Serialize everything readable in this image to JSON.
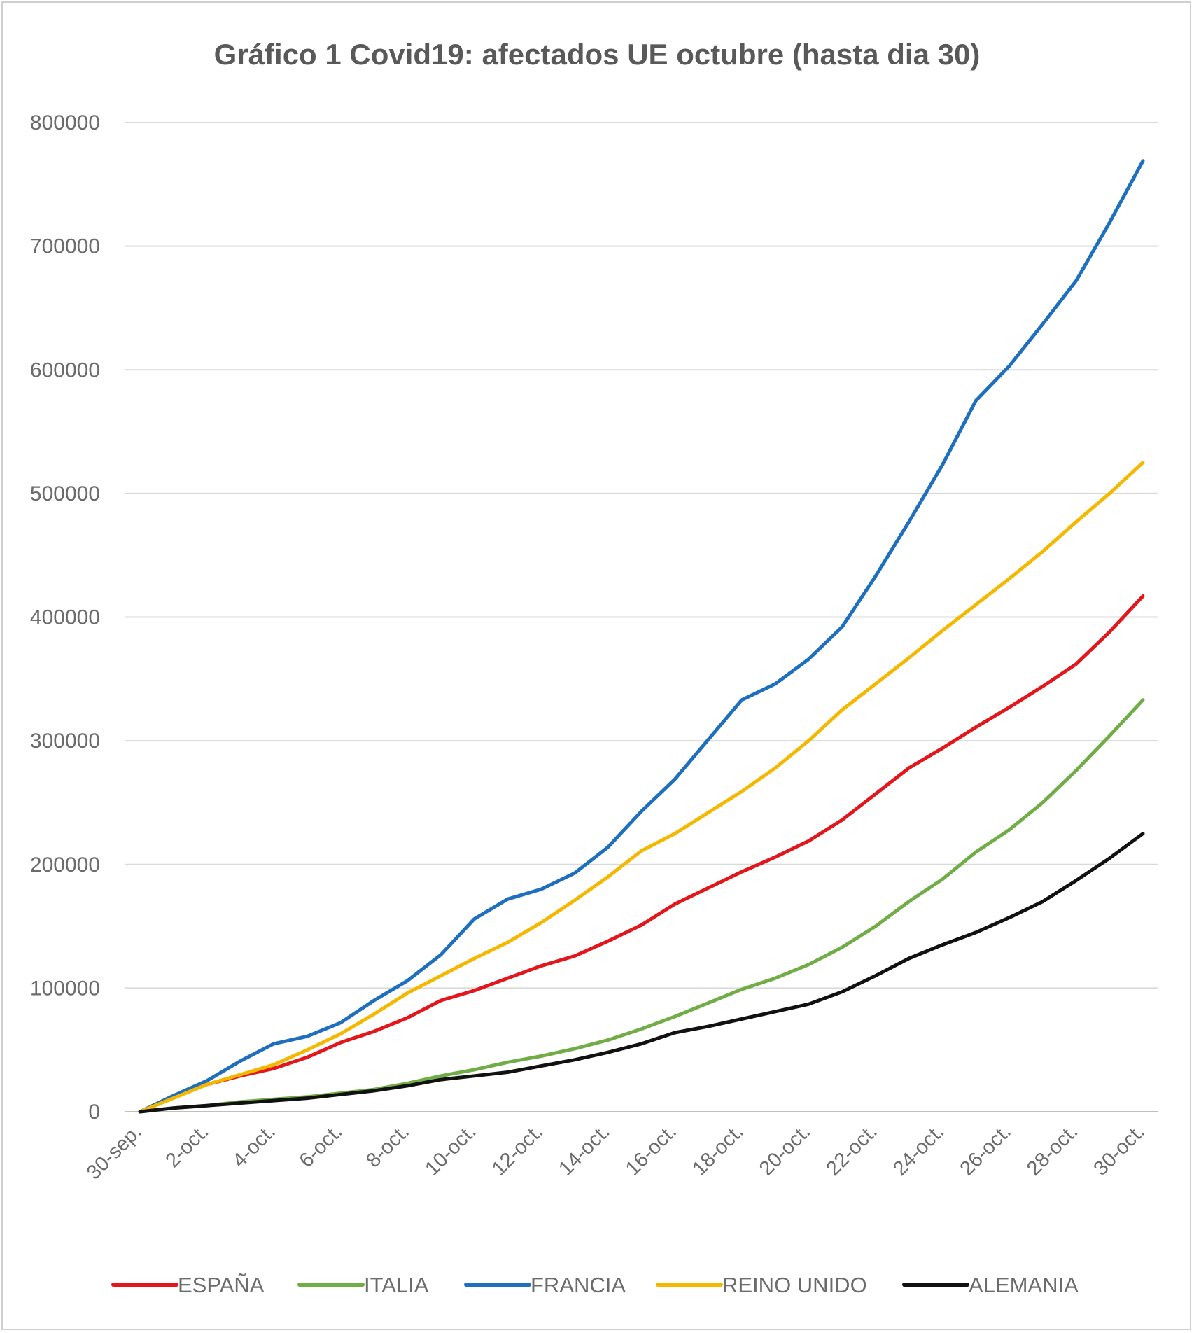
{
  "chart_data": {
    "type": "line",
    "title": "Gráfico 1  Covid19: afectados UE octubre (hasta dia 30)",
    "xlabel": "",
    "ylabel": "",
    "ylim": [
      0,
      800000
    ],
    "y_ticks": [
      "0",
      "100000",
      "200000",
      "300000",
      "400000",
      "500000",
      "600000",
      "700000",
      "800000"
    ],
    "y_tick_values": [
      0,
      100000,
      200000,
      300000,
      400000,
      500000,
      600000,
      700000,
      800000
    ],
    "x": [
      "30-sep.",
      "1-oct.",
      "2-oct.",
      "3-oct.",
      "4-oct.",
      "5-oct.",
      "6-oct.",
      "7-oct.",
      "8-oct.",
      "9-oct.",
      "10-oct.",
      "11-oct.",
      "12-oct.",
      "13-oct.",
      "14-oct.",
      "15-oct.",
      "16-oct.",
      "17-oct.",
      "18-oct.",
      "19-oct.",
      "20-oct.",
      "21-oct.",
      "22-oct.",
      "23-oct.",
      "24-oct.",
      "25-oct.",
      "26-oct.",
      "27-oct.",
      "28-oct.",
      "29-oct.",
      "30-oct."
    ],
    "x_tick_labels": [
      "30-sep.",
      "2-oct.",
      "4-oct.",
      "6-oct.",
      "8-oct.",
      "10-oct.",
      "12-oct.",
      "14-oct.",
      "16-oct.",
      "18-oct.",
      "20-oct.",
      "22-oct.",
      "24-oct.",
      "26-oct.",
      "28-oct.",
      "30-oct."
    ],
    "grid": true,
    "legend_position": "bottom",
    "series": [
      {
        "name": "ESPAÑA",
        "color": "#e3161b",
        "values": [
          0,
          12000,
          22000,
          29000,
          35000,
          44000,
          56000,
          65000,
          76000,
          90000,
          98000,
          108000,
          118000,
          126000,
          138000,
          151000,
          168000,
          181000,
          194000,
          206000,
          219000,
          236000,
          257000,
          278000,
          294000,
          311000,
          327000,
          344000,
          362000,
          388000,
          417000
        ]
      },
      {
        "name": "ITALIA",
        "color": "#70ad47",
        "values": [
          0,
          3000,
          5000,
          8000,
          10000,
          12000,
          15000,
          18000,
          23000,
          29000,
          34000,
          40000,
          45000,
          51000,
          58000,
          67000,
          77000,
          88000,
          99000,
          108000,
          119000,
          133000,
          150000,
          170000,
          188000,
          210000,
          228000,
          250000,
          276000,
          304000,
          333000
        ]
      },
      {
        "name": "FRANCIA",
        "color": "#1f6fbf",
        "values": [
          0,
          13000,
          25000,
          41000,
          55000,
          61000,
          72000,
          90000,
          106000,
          127000,
          156000,
          172000,
          180000,
          193000,
          214000,
          243000,
          269000,
          301000,
          333000,
          346000,
          366000,
          392000,
          433000,
          477000,
          523000,
          575000,
          603000,
          637000,
          672000,
          719000,
          769000
        ]
      },
      {
        "name": "REINO UNIDO",
        "color": "#f5b800",
        "values": [
          0,
          11000,
          22000,
          30000,
          38000,
          50000,
          63000,
          79000,
          96000,
          110000,
          124000,
          137000,
          153000,
          171000,
          190000,
          211000,
          225000,
          242000,
          259000,
          278000,
          300000,
          325000,
          346000,
          367000,
          389000,
          410000,
          431000,
          453000,
          477000,
          500000,
          525000
        ]
      },
      {
        "name": "ALEMANIA",
        "color": "#111111",
        "values": [
          0,
          3000,
          5000,
          7000,
          9000,
          11000,
          14000,
          17000,
          21000,
          26000,
          29000,
          32000,
          37000,
          42000,
          48000,
          55000,
          64000,
          69000,
          75000,
          81000,
          87000,
          97000,
          110000,
          124000,
          135000,
          145000,
          157000,
          170000,
          187000,
          205000,
          225000
        ]
      }
    ]
  }
}
